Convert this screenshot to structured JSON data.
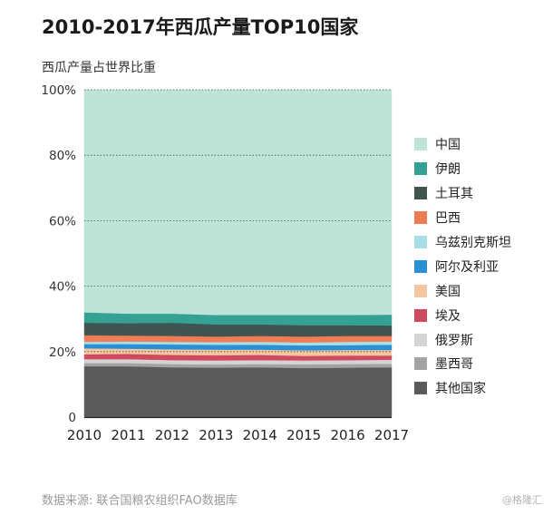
{
  "header": {
    "title": "2010-2017年西瓜产量TOP10国家",
    "subtitle": "西瓜产量占世界比重"
  },
  "footer": {
    "source": "数据来源: 联合国粮农组织FAO数据库",
    "watermark": "@格隆汇"
  },
  "chart_data": {
    "type": "area",
    "stacked": true,
    "x": [
      "2010",
      "2011",
      "2012",
      "2013",
      "2014",
      "2015",
      "2016",
      "2017"
    ],
    "ylim": [
      0,
      100
    ],
    "yticks": [
      "0",
      "20%",
      "40%",
      "60%",
      "80%",
      "100%"
    ],
    "grid": "horizontal dotted",
    "legend_position": "right",
    "series": [
      {
        "name": "其他国家",
        "color": "#5a5a5a",
        "values": [
          15.5,
          15.5,
          15.2,
          15.1,
          15.2,
          15.0,
          15.1,
          15.2
        ]
      },
      {
        "name": "墨西哥",
        "color": "#a3a3a3",
        "values": [
          1.0,
          1.0,
          1.0,
          1.0,
          1.0,
          1.1,
          1.1,
          1.1
        ]
      },
      {
        "name": "俄罗斯",
        "color": "#d4d4d4",
        "values": [
          1.2,
          1.2,
          1.2,
          1.2,
          1.2,
          1.2,
          1.2,
          1.2
        ]
      },
      {
        "name": "埃及",
        "color": "#cf4a5e",
        "values": [
          1.5,
          1.6,
          1.6,
          1.6,
          1.6,
          1.4,
          1.4,
          1.3
        ]
      },
      {
        "name": "美国",
        "color": "#f5c7a0",
        "values": [
          1.8,
          1.6,
          1.7,
          1.7,
          1.6,
          1.7,
          1.7,
          1.7
        ]
      },
      {
        "name": "阿尔及利亚",
        "color": "#2a8fd3",
        "values": [
          1.3,
          1.4,
          1.5,
          1.5,
          1.5,
          1.5,
          1.5,
          1.6
        ]
      },
      {
        "name": "乌兹别克斯坦",
        "color": "#a8dfe6",
        "values": [
          0.7,
          0.8,
          0.8,
          0.8,
          0.9,
          0.9,
          1.0,
          1.0
        ]
      },
      {
        "name": "巴西",
        "color": "#f07c55",
        "values": [
          2.0,
          1.8,
          1.8,
          1.7,
          1.8,
          1.8,
          1.8,
          1.7
        ]
      },
      {
        "name": "土耳其",
        "color": "#405550",
        "values": [
          3.8,
          3.8,
          4.0,
          3.7,
          3.5,
          3.5,
          3.3,
          3.2
        ]
      },
      {
        "name": "伊朗",
        "color": "#35a194",
        "values": [
          3.2,
          2.9,
          2.8,
          2.9,
          2.9,
          3.1,
          3.1,
          3.3
        ]
      },
      {
        "name": "中国",
        "color": "#bde4d6",
        "values": [
          68.0,
          68.4,
          68.4,
          68.8,
          68.8,
          68.8,
          68.8,
          68.7
        ]
      }
    ]
  }
}
